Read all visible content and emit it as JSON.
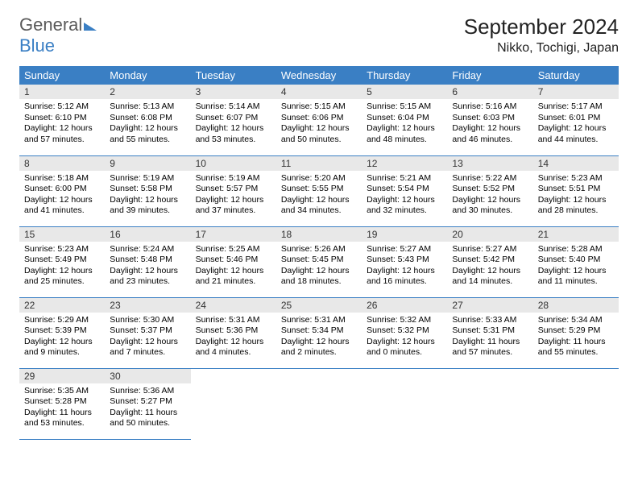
{
  "logo": {
    "text1": "General",
    "text2": "Blue"
  },
  "title": "September 2024",
  "location": "Nikko, Tochigi, Japan",
  "colors": {
    "header_bg": "#3a7fc4",
    "daynum_bg": "#e8e8e8",
    "border": "#3a7fc4"
  },
  "weekdays": [
    "Sunday",
    "Monday",
    "Tuesday",
    "Wednesday",
    "Thursday",
    "Friday",
    "Saturday"
  ],
  "weeks": [
    [
      {
        "n": "1",
        "sr": "Sunrise: 5:12 AM",
        "ss": "Sunset: 6:10 PM",
        "dl": "Daylight: 12 hours and 57 minutes."
      },
      {
        "n": "2",
        "sr": "Sunrise: 5:13 AM",
        "ss": "Sunset: 6:08 PM",
        "dl": "Daylight: 12 hours and 55 minutes."
      },
      {
        "n": "3",
        "sr": "Sunrise: 5:14 AM",
        "ss": "Sunset: 6:07 PM",
        "dl": "Daylight: 12 hours and 53 minutes."
      },
      {
        "n": "4",
        "sr": "Sunrise: 5:15 AM",
        "ss": "Sunset: 6:06 PM",
        "dl": "Daylight: 12 hours and 50 minutes."
      },
      {
        "n": "5",
        "sr": "Sunrise: 5:15 AM",
        "ss": "Sunset: 6:04 PM",
        "dl": "Daylight: 12 hours and 48 minutes."
      },
      {
        "n": "6",
        "sr": "Sunrise: 5:16 AM",
        "ss": "Sunset: 6:03 PM",
        "dl": "Daylight: 12 hours and 46 minutes."
      },
      {
        "n": "7",
        "sr": "Sunrise: 5:17 AM",
        "ss": "Sunset: 6:01 PM",
        "dl": "Daylight: 12 hours and 44 minutes."
      }
    ],
    [
      {
        "n": "8",
        "sr": "Sunrise: 5:18 AM",
        "ss": "Sunset: 6:00 PM",
        "dl": "Daylight: 12 hours and 41 minutes."
      },
      {
        "n": "9",
        "sr": "Sunrise: 5:19 AM",
        "ss": "Sunset: 5:58 PM",
        "dl": "Daylight: 12 hours and 39 minutes."
      },
      {
        "n": "10",
        "sr": "Sunrise: 5:19 AM",
        "ss": "Sunset: 5:57 PM",
        "dl": "Daylight: 12 hours and 37 minutes."
      },
      {
        "n": "11",
        "sr": "Sunrise: 5:20 AM",
        "ss": "Sunset: 5:55 PM",
        "dl": "Daylight: 12 hours and 34 minutes."
      },
      {
        "n": "12",
        "sr": "Sunrise: 5:21 AM",
        "ss": "Sunset: 5:54 PM",
        "dl": "Daylight: 12 hours and 32 minutes."
      },
      {
        "n": "13",
        "sr": "Sunrise: 5:22 AM",
        "ss": "Sunset: 5:52 PM",
        "dl": "Daylight: 12 hours and 30 minutes."
      },
      {
        "n": "14",
        "sr": "Sunrise: 5:23 AM",
        "ss": "Sunset: 5:51 PM",
        "dl": "Daylight: 12 hours and 28 minutes."
      }
    ],
    [
      {
        "n": "15",
        "sr": "Sunrise: 5:23 AM",
        "ss": "Sunset: 5:49 PM",
        "dl": "Daylight: 12 hours and 25 minutes."
      },
      {
        "n": "16",
        "sr": "Sunrise: 5:24 AM",
        "ss": "Sunset: 5:48 PM",
        "dl": "Daylight: 12 hours and 23 minutes."
      },
      {
        "n": "17",
        "sr": "Sunrise: 5:25 AM",
        "ss": "Sunset: 5:46 PM",
        "dl": "Daylight: 12 hours and 21 minutes."
      },
      {
        "n": "18",
        "sr": "Sunrise: 5:26 AM",
        "ss": "Sunset: 5:45 PM",
        "dl": "Daylight: 12 hours and 18 minutes."
      },
      {
        "n": "19",
        "sr": "Sunrise: 5:27 AM",
        "ss": "Sunset: 5:43 PM",
        "dl": "Daylight: 12 hours and 16 minutes."
      },
      {
        "n": "20",
        "sr": "Sunrise: 5:27 AM",
        "ss": "Sunset: 5:42 PM",
        "dl": "Daylight: 12 hours and 14 minutes."
      },
      {
        "n": "21",
        "sr": "Sunrise: 5:28 AM",
        "ss": "Sunset: 5:40 PM",
        "dl": "Daylight: 12 hours and 11 minutes."
      }
    ],
    [
      {
        "n": "22",
        "sr": "Sunrise: 5:29 AM",
        "ss": "Sunset: 5:39 PM",
        "dl": "Daylight: 12 hours and 9 minutes."
      },
      {
        "n": "23",
        "sr": "Sunrise: 5:30 AM",
        "ss": "Sunset: 5:37 PM",
        "dl": "Daylight: 12 hours and 7 minutes."
      },
      {
        "n": "24",
        "sr": "Sunrise: 5:31 AM",
        "ss": "Sunset: 5:36 PM",
        "dl": "Daylight: 12 hours and 4 minutes."
      },
      {
        "n": "25",
        "sr": "Sunrise: 5:31 AM",
        "ss": "Sunset: 5:34 PM",
        "dl": "Daylight: 12 hours and 2 minutes."
      },
      {
        "n": "26",
        "sr": "Sunrise: 5:32 AM",
        "ss": "Sunset: 5:32 PM",
        "dl": "Daylight: 12 hours and 0 minutes."
      },
      {
        "n": "27",
        "sr": "Sunrise: 5:33 AM",
        "ss": "Sunset: 5:31 PM",
        "dl": "Daylight: 11 hours and 57 minutes."
      },
      {
        "n": "28",
        "sr": "Sunrise: 5:34 AM",
        "ss": "Sunset: 5:29 PM",
        "dl": "Daylight: 11 hours and 55 minutes."
      }
    ],
    [
      {
        "n": "29",
        "sr": "Sunrise: 5:35 AM",
        "ss": "Sunset: 5:28 PM",
        "dl": "Daylight: 11 hours and 53 minutes."
      },
      {
        "n": "30",
        "sr": "Sunrise: 5:36 AM",
        "ss": "Sunset: 5:27 PM",
        "dl": "Daylight: 11 hours and 50 minutes."
      },
      null,
      null,
      null,
      null,
      null
    ]
  ]
}
